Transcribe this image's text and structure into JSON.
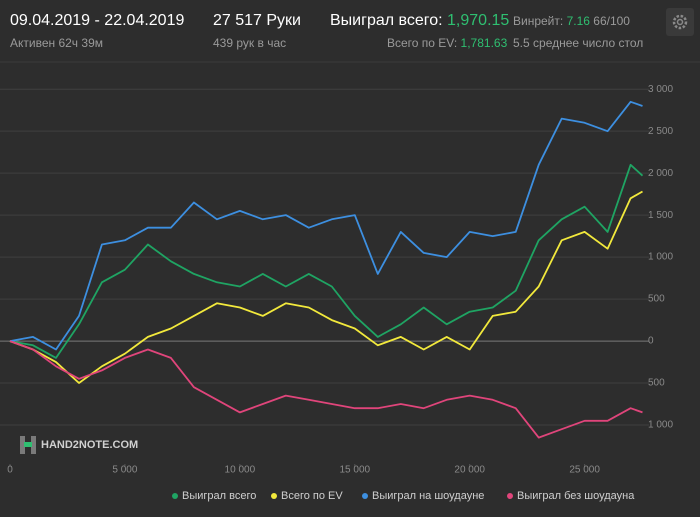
{
  "header": {
    "date_range": "09.04.2019 - 22.04.2019",
    "active": "Активен 62ч 39м",
    "hands": "27 517 Руки",
    "hands_per_hour": "439 рук в час",
    "won_label": "Выиграл всего:",
    "won_value": "1,970.15",
    "winrate_label": "Винрейт:",
    "winrate_value": "7.16",
    "winrate_sample": "66/100",
    "ev_label": "Всего по EV:",
    "ev_value": "1,781.63",
    "tables": "5.5 среднее число стол"
  },
  "logo": "HAND2NOTE.COM",
  "chart_data": {
    "type": "line",
    "x": [
      0,
      1000,
      2000,
      3000,
      4000,
      5000,
      6000,
      7000,
      8000,
      9000,
      10000,
      11000,
      12000,
      13000,
      14000,
      15000,
      16000,
      17000,
      18000,
      19000,
      20000,
      21000,
      22000,
      23000,
      24000,
      25000,
      26000,
      27000,
      27517
    ],
    "series": [
      {
        "name": "Выиграл всего",
        "color": "#1fa463",
        "values": [
          0,
          -50,
          -200,
          200,
          700,
          850,
          1150,
          950,
          800,
          700,
          650,
          800,
          650,
          800,
          650,
          300,
          50,
          200,
          400,
          200,
          350,
          400,
          600,
          1200,
          1450,
          1600,
          1300,
          2100,
          1970.15
        ]
      },
      {
        "name": "Всего по EV",
        "color": "#f2e93c",
        "values": [
          0,
          -100,
          -250,
          -500,
          -300,
          -150,
          50,
          150,
          300,
          450,
          400,
          300,
          450,
          400,
          250,
          150,
          -50,
          50,
          -100,
          50,
          -100,
          300,
          350,
          650,
          1200,
          1300,
          1100,
          1700,
          1781.63
        ]
      },
      {
        "name": "Выиграл на шоудауне",
        "color": "#3d8fe0",
        "values": [
          0,
          50,
          -100,
          300,
          1150,
          1200,
          1350,
          1350,
          1650,
          1450,
          1550,
          1450,
          1500,
          1350,
          1450,
          1500,
          800,
          1300,
          1050,
          1000,
          1300,
          1250,
          1300,
          2100,
          2650,
          2600,
          2500,
          2850,
          2800
        ]
      },
      {
        "name": "Выиграл без шоудауна",
        "color": "#e0457b",
        "values": [
          0,
          -100,
          -300,
          -450,
          -350,
          -200,
          -100,
          -200,
          -550,
          -700,
          -850,
          -750,
          -650,
          -700,
          -750,
          -800,
          -800,
          -750,
          -800,
          -700,
          -650,
          -700,
          -800,
          -1150,
          -1050,
          -950,
          -950,
          -800,
          -850
        ]
      }
    ],
    "xlim": [
      0,
      27800
    ],
    "xticks": [
      0,
      {
        "value": 5000,
        "label": "5 000"
      },
      {
        "value": 10000,
        "label": "10 000"
      },
      {
        "value": 15000,
        "label": "15 000"
      },
      {
        "value": 20000,
        "label": "20 000"
      },
      {
        "value": 25000,
        "label": "25 000"
      }
    ],
    "ylim": [
      -1500,
      3300
    ],
    "yticks": [
      {
        "value": -1000,
        "label": "1 000"
      },
      {
        "value": -500,
        "label": "500"
      },
      0,
      500,
      {
        "value": 1000,
        "label": "1 000"
      },
      {
        "value": 1500,
        "label": "1 500"
      },
      {
        "value": 2000,
        "label": "2 000"
      },
      {
        "value": 2500,
        "label": "2 500"
      },
      {
        "value": 3000,
        "label": "3 000"
      }
    ],
    "grid": true
  }
}
